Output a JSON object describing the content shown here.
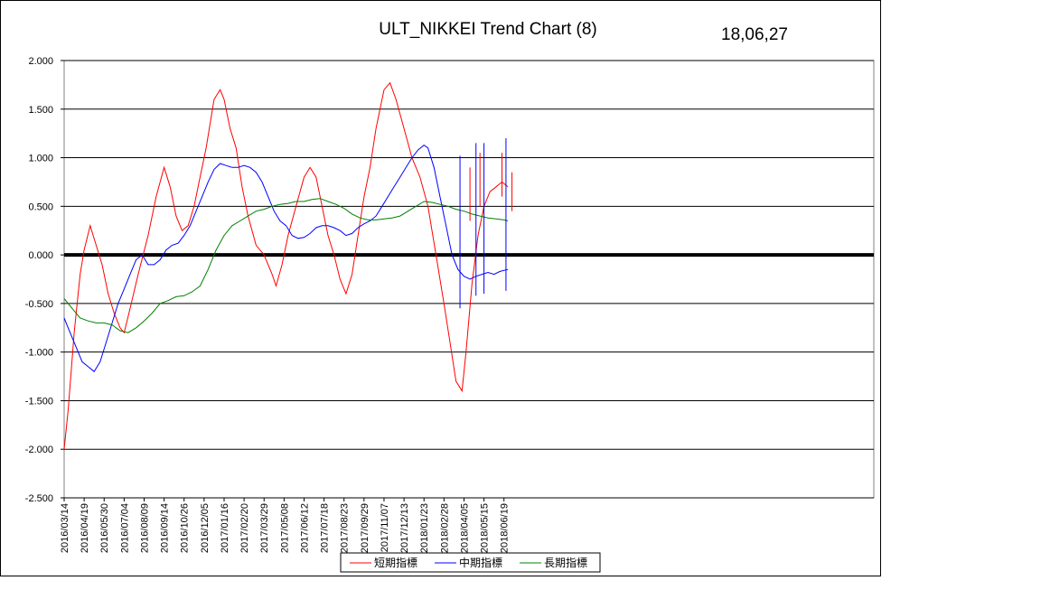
{
  "chart_data": {
    "type": "line",
    "title": "ULT_NIKKEI Trend Chart (8)",
    "date_stamp": "18,06,27",
    "y_ticks": [
      "2.000",
      "1.500",
      "1.000",
      "0.500",
      "0.000",
      "-0.500",
      "-1.000",
      "-1.500",
      "-2.000",
      "-2.500"
    ],
    "ylim": [
      -2.5,
      2.0
    ],
    "grid": true,
    "legend_position": "bottom",
    "x_tick_labels": [
      "2016/03/14",
      "2016/04/19",
      "2016/05/30",
      "2016/07/04",
      "2016/08/09",
      "2016/09/14",
      "2016/10/26",
      "2016/12/05",
      "2017/01/16",
      "2017/02/20",
      "2017/03/29",
      "2017/05/08",
      "2017/06/12",
      "2017/07/18",
      "2017/08/23",
      "2017/09/29",
      "2017/11/07",
      "2017/12/13",
      "2018/01/23",
      "2018/02/28",
      "2018/04/05",
      "2018/05/15",
      "2018/06/19"
    ],
    "x_tick_positions": [
      0,
      1,
      2,
      3,
      4,
      5,
      6,
      7,
      8,
      9,
      10,
      11,
      12,
      13,
      14,
      15,
      16,
      17,
      18,
      19,
      20,
      21,
      22
    ],
    "series": [
      {
        "name": "短期指標",
        "color": "#ff0000",
        "points": [
          [
            0,
            -2.0
          ],
          [
            0.2,
            -1.6
          ],
          [
            0.5,
            -0.8
          ],
          [
            0.8,
            -0.2
          ],
          [
            1.0,
            0.05
          ],
          [
            1.3,
            0.3
          ],
          [
            1.6,
            0.1
          ],
          [
            1.9,
            -0.1
          ],
          [
            2.2,
            -0.4
          ],
          [
            2.5,
            -0.6
          ],
          [
            2.8,
            -0.75
          ],
          [
            3.0,
            -0.8
          ],
          [
            3.3,
            -0.55
          ],
          [
            3.7,
            -0.2
          ],
          [
            4.2,
            0.2
          ],
          [
            4.6,
            0.6
          ],
          [
            5.0,
            0.9
          ],
          [
            5.3,
            0.7
          ],
          [
            5.6,
            0.4
          ],
          [
            5.9,
            0.25
          ],
          [
            6.2,
            0.3
          ],
          [
            6.5,
            0.5
          ],
          [
            6.8,
            0.8
          ],
          [
            7.1,
            1.1
          ],
          [
            7.5,
            1.6
          ],
          [
            7.8,
            1.7
          ],
          [
            8.0,
            1.6
          ],
          [
            8.3,
            1.3
          ],
          [
            8.6,
            1.1
          ],
          [
            8.9,
            0.7
          ],
          [
            9.2,
            0.4
          ],
          [
            9.6,
            0.1
          ],
          [
            10.0,
            0.0
          ],
          [
            10.4,
            -0.2
          ],
          [
            10.6,
            -0.32
          ],
          [
            10.9,
            -0.1
          ],
          [
            11.2,
            0.2
          ],
          [
            11.6,
            0.5
          ],
          [
            12.0,
            0.8
          ],
          [
            12.3,
            0.9
          ],
          [
            12.6,
            0.8
          ],
          [
            12.9,
            0.5
          ],
          [
            13.2,
            0.2
          ],
          [
            13.5,
            0.0
          ],
          [
            13.8,
            -0.25
          ],
          [
            14.1,
            -0.4
          ],
          [
            14.4,
            -0.2
          ],
          [
            14.7,
            0.2
          ],
          [
            15.0,
            0.6
          ],
          [
            15.3,
            0.9
          ],
          [
            15.6,
            1.3
          ],
          [
            16.0,
            1.7
          ],
          [
            16.3,
            1.77
          ],
          [
            16.6,
            1.6
          ],
          [
            17.0,
            1.3
          ],
          [
            17.4,
            1.0
          ],
          [
            17.8,
            0.8
          ],
          [
            18.2,
            0.5
          ],
          [
            18.6,
            0.0
          ],
          [
            19.0,
            -0.5
          ],
          [
            19.3,
            -0.9
          ],
          [
            19.6,
            -1.3
          ],
          [
            19.9,
            -1.4
          ],
          [
            20.1,
            -1.0
          ],
          [
            20.4,
            -0.3
          ],
          [
            20.7,
            0.2
          ],
          [
            21.0,
            0.5
          ],
          [
            21.3,
            0.65
          ],
          [
            21.6,
            0.7
          ],
          [
            21.9,
            0.75
          ],
          [
            22.2,
            0.7
          ]
        ]
      },
      {
        "name": "中期指標",
        "color": "#0000ff",
        "points": [
          [
            0,
            -0.65
          ],
          [
            0.3,
            -0.8
          ],
          [
            0.6,
            -0.95
          ],
          [
            0.9,
            -1.1
          ],
          [
            1.2,
            -1.15
          ],
          [
            1.5,
            -1.2
          ],
          [
            1.8,
            -1.1
          ],
          [
            2.1,
            -0.9
          ],
          [
            2.4,
            -0.7
          ],
          [
            2.7,
            -0.5
          ],
          [
            3.0,
            -0.35
          ],
          [
            3.3,
            -0.2
          ],
          [
            3.6,
            -0.05
          ],
          [
            3.9,
            0.0
          ],
          [
            4.2,
            -0.1
          ],
          [
            4.5,
            -0.1
          ],
          [
            4.8,
            -0.05
          ],
          [
            5.1,
            0.05
          ],
          [
            5.4,
            0.1
          ],
          [
            5.7,
            0.12
          ],
          [
            6.0,
            0.2
          ],
          [
            6.3,
            0.3
          ],
          [
            6.6,
            0.45
          ],
          [
            6.9,
            0.6
          ],
          [
            7.2,
            0.75
          ],
          [
            7.5,
            0.88
          ],
          [
            7.8,
            0.94
          ],
          [
            8.1,
            0.92
          ],
          [
            8.4,
            0.9
          ],
          [
            8.7,
            0.9
          ],
          [
            9.0,
            0.92
          ],
          [
            9.3,
            0.9
          ],
          [
            9.6,
            0.85
          ],
          [
            9.9,
            0.75
          ],
          [
            10.2,
            0.6
          ],
          [
            10.5,
            0.45
          ],
          [
            10.8,
            0.35
          ],
          [
            11.1,
            0.3
          ],
          [
            11.4,
            0.2
          ],
          [
            11.7,
            0.17
          ],
          [
            12.0,
            0.18
          ],
          [
            12.3,
            0.22
          ],
          [
            12.6,
            0.28
          ],
          [
            12.9,
            0.3
          ],
          [
            13.2,
            0.3
          ],
          [
            13.5,
            0.28
          ],
          [
            13.8,
            0.25
          ],
          [
            14.1,
            0.2
          ],
          [
            14.4,
            0.22
          ],
          [
            14.7,
            0.28
          ],
          [
            15.0,
            0.32
          ],
          [
            15.3,
            0.35
          ],
          [
            15.6,
            0.4
          ],
          [
            15.9,
            0.5
          ],
          [
            16.2,
            0.6
          ],
          [
            16.5,
            0.7
          ],
          [
            16.8,
            0.8
          ],
          [
            17.1,
            0.9
          ],
          [
            17.4,
            1.0
          ],
          [
            17.7,
            1.08
          ],
          [
            18.0,
            1.13
          ],
          [
            18.2,
            1.1
          ],
          [
            18.5,
            0.9
          ],
          [
            18.8,
            0.6
          ],
          [
            19.1,
            0.3
          ],
          [
            19.4,
            0.0
          ],
          [
            19.7,
            -0.15
          ],
          [
            20.0,
            -0.22
          ],
          [
            20.3,
            -0.25
          ],
          [
            20.6,
            -0.22
          ],
          [
            20.9,
            -0.2
          ],
          [
            21.2,
            -0.18
          ],
          [
            21.5,
            -0.2
          ],
          [
            21.8,
            -0.17
          ],
          [
            22.2,
            -0.15
          ]
        ]
      },
      {
        "name": "長期指標",
        "color": "#008000",
        "points": [
          [
            0,
            -0.45
          ],
          [
            0.4,
            -0.55
          ],
          [
            0.8,
            -0.65
          ],
          [
            1.2,
            -0.68
          ],
          [
            1.6,
            -0.7
          ],
          [
            2.0,
            -0.7
          ],
          [
            2.4,
            -0.72
          ],
          [
            2.8,
            -0.78
          ],
          [
            3.2,
            -0.8
          ],
          [
            3.6,
            -0.75
          ],
          [
            4.0,
            -0.68
          ],
          [
            4.4,
            -0.6
          ],
          [
            4.8,
            -0.5
          ],
          [
            5.2,
            -0.47
          ],
          [
            5.6,
            -0.43
          ],
          [
            6.0,
            -0.42
          ],
          [
            6.4,
            -0.38
          ],
          [
            6.8,
            -0.32
          ],
          [
            7.2,
            -0.15
          ],
          [
            7.6,
            0.05
          ],
          [
            8.0,
            0.2
          ],
          [
            8.4,
            0.3
          ],
          [
            8.8,
            0.35
          ],
          [
            9.2,
            0.4
          ],
          [
            9.6,
            0.45
          ],
          [
            10.0,
            0.47
          ],
          [
            10.4,
            0.5
          ],
          [
            10.8,
            0.52
          ],
          [
            11.2,
            0.53
          ],
          [
            11.6,
            0.55
          ],
          [
            12.0,
            0.55
          ],
          [
            12.4,
            0.57
          ],
          [
            12.8,
            0.58
          ],
          [
            13.2,
            0.55
          ],
          [
            13.6,
            0.52
          ],
          [
            14.0,
            0.48
          ],
          [
            14.4,
            0.42
          ],
          [
            14.8,
            0.38
          ],
          [
            15.2,
            0.36
          ],
          [
            15.6,
            0.36
          ],
          [
            16.0,
            0.37
          ],
          [
            16.4,
            0.38
          ],
          [
            16.8,
            0.4
          ],
          [
            17.2,
            0.45
          ],
          [
            17.6,
            0.5
          ],
          [
            18.0,
            0.55
          ],
          [
            18.4,
            0.54
          ],
          [
            18.8,
            0.52
          ],
          [
            19.2,
            0.5
          ],
          [
            19.6,
            0.47
          ],
          [
            20.0,
            0.45
          ],
          [
            20.4,
            0.42
          ],
          [
            20.8,
            0.4
          ],
          [
            21.2,
            0.38
          ],
          [
            21.6,
            0.37
          ],
          [
            22.0,
            0.36
          ],
          [
            22.2,
            0.35
          ]
        ]
      }
    ],
    "bars": [
      {
        "color": "#0000ff",
        "x": 19.8,
        "low": -0.55,
        "high": 1.02
      },
      {
        "color": "#ff0000",
        "x": 20.3,
        "low": 0.35,
        "high": 0.9
      },
      {
        "color": "#0000ff",
        "x": 20.6,
        "low": -0.42,
        "high": 1.15
      },
      {
        "color": "#ff0000",
        "x": 20.8,
        "low": 0.5,
        "high": 1.05
      },
      {
        "color": "#0000ff",
        "x": 21.0,
        "low": -0.4,
        "high": 1.15
      },
      {
        "color": "#ff0000",
        "x": 21.9,
        "low": 0.6,
        "high": 1.05
      },
      {
        "color": "#0000ff",
        "x": 22.1,
        "low": -0.37,
        "high": 1.2
      },
      {
        "color": "#ff0000",
        "x": 22.4,
        "low": 0.45,
        "high": 0.85
      }
    ],
    "xlim": [
      0,
      40.5
    ]
  }
}
